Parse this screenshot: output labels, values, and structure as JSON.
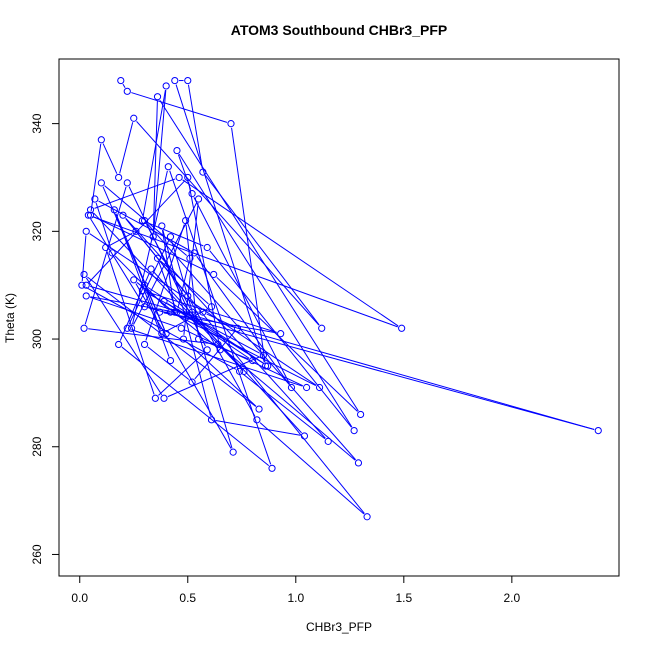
{
  "chart_data": {
    "type": "line",
    "title": "ATOM3 Southbound CHBr3_PFP",
    "xlabel": "CHBr3_PFP",
    "ylabel": "Theta (K)",
    "xlim": [
      -0.096,
      2.496
    ],
    "ylim": [
      256,
      352
    ],
    "x_ticks": [
      0.0,
      0.5,
      1.0,
      1.5,
      2.0
    ],
    "x_tick_labels": [
      "0.0",
      "0.5",
      "1.0",
      "1.5",
      "2.0"
    ],
    "y_ticks": [
      260,
      280,
      300,
      320,
      340
    ],
    "y_tick_labels": [
      "260",
      "280",
      "300",
      "320",
      "340"
    ],
    "grid": false,
    "marker": "open-circle",
    "series_color": "#0000ff",
    "series": [
      {
        "x": [
          0.19,
          0.22,
          0.7,
          0.86,
          0.44,
          0.5,
          0.57,
          1.12,
          0.25,
          0.18,
          0.1,
          0.05,
          0.62,
          1.3,
          0.36,
          0.34,
          0.4,
          0.29,
          0.59,
          1.27,
          0.45,
          0.52,
          0.98,
          0.53,
          0.07,
          0.15,
          0.42,
          1.11,
          0.03,
          0.01,
          0.74,
          1.15,
          0.2,
          0.5,
          0.82,
          1.33,
          0.26,
          0.12,
          0.35,
          0.59,
          0.22,
          0.02,
          0.64,
          1.29,
          0.3,
          0.52,
          0.76,
          0.05,
          0.46,
          1.49,
          0.04,
          0.3,
          2.4,
          0.03,
          0.5,
          0.65,
          0.25,
          0.71,
          0.42,
          0.22,
          1.05,
          0.47,
          0.03,
          0.44,
          0.38,
          0.61,
          1.04,
          0.33,
          0.18,
          0.89,
          0.41,
          0.24,
          0.55,
          0.48,
          0.83,
          0.02,
          0.39,
          0.85,
          0.29,
          0.93,
          0.37,
          0.57,
          0.73,
          0.52,
          0.3,
          0.49,
          0.55,
          0.8,
          0.39,
          0.87,
          0.3,
          0.38,
          0.61,
          0.36,
          0.45,
          0.51,
          0.1,
          0.4,
          0.16,
          0.42
        ],
        "y": [
          348,
          346,
          340,
          295,
          348,
          348,
          331,
          302,
          341,
          330,
          337,
          323,
          312,
          286,
          345,
          319,
          347,
          322,
          317,
          283,
          335,
          327,
          291,
          316,
          326,
          316,
          305,
          291,
          320,
          310,
          294,
          281,
          323,
          308,
          285,
          267,
          320,
          317,
          289,
          298,
          329,
          302,
          299,
          277,
          322,
          305,
          294,
          324,
          330,
          302,
          323,
          306,
          283,
          310,
          330,
          298,
          311,
          279,
          319,
          302,
          291,
          302,
          308,
          305,
          321,
          285,
          282,
          313,
          299,
          276,
          332,
          302,
          326,
          300,
          287,
          312,
          289,
          297,
          309,
          301,
          305,
          305,
          302,
          292,
          299,
          322,
          300,
          296,
          307,
          295,
          310,
          301,
          306,
          315,
          305,
          315,
          329,
          301,
          324,
          296
        ]
      }
    ]
  }
}
